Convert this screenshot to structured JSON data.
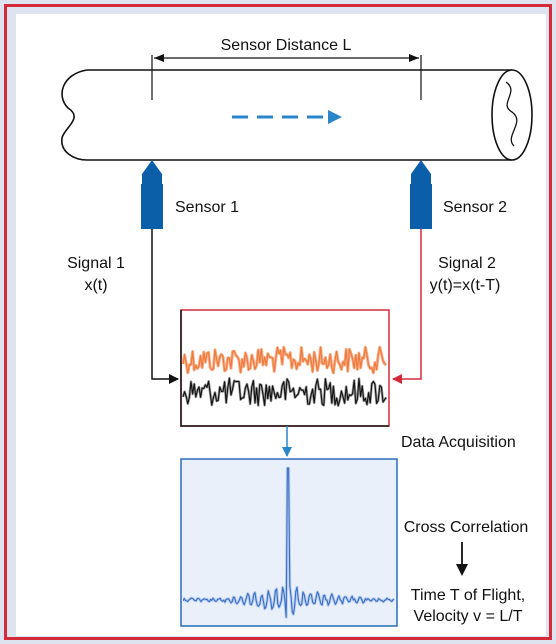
{
  "labels": {
    "sensor_distance": "Sensor Distance L",
    "sensor1": "Sensor 1",
    "sensor2": "Sensor 2",
    "signal1_name": "Signal 1",
    "signal1_expr": "x(t)",
    "signal2_name": "Signal 2",
    "signal2_expr": "y(t)=x(t-T)",
    "data_acquisition": "Data Acquisition",
    "cross_correlation": "Cross Correlation",
    "time_of_flight": "Time T of Flight,",
    "velocity": "Velocity v = L/T"
  },
  "colors": {
    "border": "#d42b3a",
    "background": "#dde3ef",
    "sensor": "#0b5fa8",
    "flow_arrow": "#2a86c8",
    "signal1_line": "#111111",
    "signal2_line": "#d42b3a",
    "trace_black": "#111111",
    "trace_orange": "#f07a3c",
    "correlation": "#3a6fc4"
  },
  "icons": {
    "sensor": "sensor-probe-icon",
    "flow": "dashed-flow-arrow-icon"
  }
}
